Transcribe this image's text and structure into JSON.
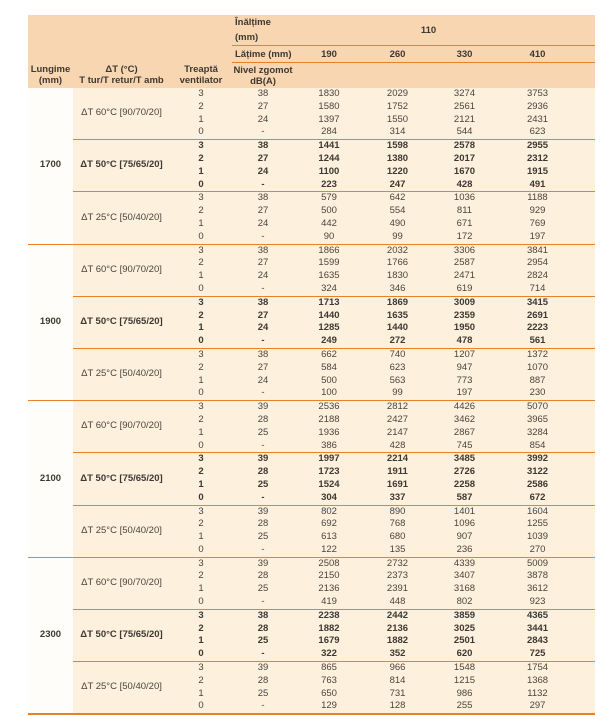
{
  "colors": {
    "header_bg": "#f9d6b2",
    "body_bg": "#fdf0dd",
    "lungime_bg": "#fffdfa",
    "line": "#e5832d",
    "text": "#4b443c"
  },
  "table": {
    "header": {
      "inaltime_label": "Înălțime (mm)",
      "inaltime_value": "110",
      "latime_label": "Lățime (mm)",
      "latime_values": [
        "190",
        "260",
        "330",
        "410"
      ],
      "col_lungime": "Lungime\n(mm)",
      "col_delta_t": "ΔT (°C)\nT tur/T retur/T amb",
      "col_treapta": "Treaptă\nventilator",
      "col_nivel": "Nivel zgomot\ndB(A)"
    },
    "groups": [
      {
        "lungime": "1700",
        "subgroups": [
          {
            "delta_t": "ΔT 60°C [90/70/20]",
            "bold": false,
            "rows": [
              {
                "treapta": "3",
                "db": "38",
                "values": [
                  "1830",
                  "2029",
                  "3274",
                  "3753"
                ]
              },
              {
                "treapta": "2",
                "db": "27",
                "values": [
                  "1580",
                  "1752",
                  "2561",
                  "2936"
                ]
              },
              {
                "treapta": "1",
                "db": "24",
                "values": [
                  "1397",
                  "1550",
                  "2121",
                  "2431"
                ]
              },
              {
                "treapta": "0",
                "db": "-",
                "values": [
                  "284",
                  "314",
                  "544",
                  "623"
                ]
              }
            ]
          },
          {
            "delta_t": "ΔT 50°C [75/65/20]",
            "bold": true,
            "rows": [
              {
                "treapta": "3",
                "db": "38",
                "values": [
                  "1441",
                  "1598",
                  "2578",
                  "2955"
                ]
              },
              {
                "treapta": "2",
                "db": "27",
                "values": [
                  "1244",
                  "1380",
                  "2017",
                  "2312"
                ]
              },
              {
                "treapta": "1",
                "db": "24",
                "values": [
                  "1100",
                  "1220",
                  "1670",
                  "1915"
                ]
              },
              {
                "treapta": "0",
                "db": "-",
                "values": [
                  "223",
                  "247",
                  "428",
                  "491"
                ]
              }
            ]
          },
          {
            "delta_t": "ΔT 25°C [50/40/20]",
            "bold": false,
            "rows": [
              {
                "treapta": "3",
                "db": "38",
                "values": [
                  "579",
                  "642",
                  "1036",
                  "1188"
                ]
              },
              {
                "treapta": "2",
                "db": "27",
                "values": [
                  "500",
                  "554",
                  "811",
                  "929"
                ]
              },
              {
                "treapta": "1",
                "db": "24",
                "values": [
                  "442",
                  "490",
                  "671",
                  "769"
                ]
              },
              {
                "treapta": "0",
                "db": "-",
                "values": [
                  "90",
                  "99",
                  "172",
                  "197"
                ]
              }
            ]
          }
        ]
      },
      {
        "lungime": "1900",
        "subgroups": [
          {
            "delta_t": "ΔT 60°C [90/70/20]",
            "bold": false,
            "rows": [
              {
                "treapta": "3",
                "db": "38",
                "values": [
                  "1866",
                  "2032",
                  "3306",
                  "3841"
                ]
              },
              {
                "treapta": "2",
                "db": "27",
                "values": [
                  "1599",
                  "1766",
                  "2587",
                  "2954"
                ]
              },
              {
                "treapta": "1",
                "db": "24",
                "values": [
                  "1635",
                  "1830",
                  "2471",
                  "2824"
                ]
              },
              {
                "treapta": "0",
                "db": "-",
                "values": [
                  "324",
                  "346",
                  "619",
                  "714"
                ]
              }
            ]
          },
          {
            "delta_t": "ΔT 50°C [75/65/20]",
            "bold": true,
            "rows": [
              {
                "treapta": "3",
                "db": "38",
                "values": [
                  "1713",
                  "1869",
                  "3009",
                  "3415"
                ]
              },
              {
                "treapta": "2",
                "db": "27",
                "values": [
                  "1440",
                  "1635",
                  "2359",
                  "2691"
                ]
              },
              {
                "treapta": "1",
                "db": "24",
                "values": [
                  "1285",
                  "1440",
                  "1950",
                  "2223"
                ]
              },
              {
                "treapta": "0",
                "db": "-",
                "values": [
                  "249",
                  "272",
                  "478",
                  "561"
                ]
              }
            ]
          },
          {
            "delta_t": "ΔT 25°C [50/40/20]",
            "bold": false,
            "rows": [
              {
                "treapta": "3",
                "db": "38",
                "values": [
                  "662",
                  "740",
                  "1207",
                  "1372"
                ]
              },
              {
                "treapta": "2",
                "db": "27",
                "values": [
                  "584",
                  "623",
                  "947",
                  "1070"
                ]
              },
              {
                "treapta": "1",
                "db": "24",
                "values": [
                  "500",
                  "563",
                  "773",
                  "887"
                ]
              },
              {
                "treapta": "0",
                "db": "-",
                "values": [
                  "100",
                  "99",
                  "197",
                  "230"
                ]
              }
            ]
          }
        ]
      },
      {
        "lungime": "2100",
        "subgroups": [
          {
            "delta_t": "ΔT 60°C [90/70/20]",
            "bold": false,
            "rows": [
              {
                "treapta": "3",
                "db": "39",
                "values": [
                  "2536",
                  "2812",
                  "4426",
                  "5070"
                ]
              },
              {
                "treapta": "2",
                "db": "28",
                "values": [
                  "2188",
                  "2427",
                  "3462",
                  "3965"
                ]
              },
              {
                "treapta": "1",
                "db": "25",
                "values": [
                  "1936",
                  "2147",
                  "2867",
                  "3284"
                ]
              },
              {
                "treapta": "0",
                "db": "-",
                "values": [
                  "386",
                  "428",
                  "745",
                  "854"
                ]
              }
            ]
          },
          {
            "delta_t": "ΔT 50°C [75/65/20]",
            "bold": true,
            "rows": [
              {
                "treapta": "3",
                "db": "39",
                "values": [
                  "1997",
                  "2214",
                  "3485",
                  "3992"
                ]
              },
              {
                "treapta": "2",
                "db": "28",
                "values": [
                  "1723",
                  "1911",
                  "2726",
                  "3122"
                ]
              },
              {
                "treapta": "1",
                "db": "25",
                "values": [
                  "1524",
                  "1691",
                  "2258",
                  "2586"
                ]
              },
              {
                "treapta": "0",
                "db": "-",
                "values": [
                  "304",
                  "337",
                  "587",
                  "672"
                ]
              }
            ]
          },
          {
            "delta_t": "ΔT 25°C [50/40/20]",
            "bold": false,
            "rows": [
              {
                "treapta": "3",
                "db": "39",
                "values": [
                  "802",
                  "890",
                  "1401",
                  "1604"
                ]
              },
              {
                "treapta": "2",
                "db": "28",
                "values": [
                  "692",
                  "768",
                  "1096",
                  "1255"
                ]
              },
              {
                "treapta": "1",
                "db": "25",
                "values": [
                  "613",
                  "680",
                  "907",
                  "1039"
                ]
              },
              {
                "treapta": "0",
                "db": "-",
                "values": [
                  "122",
                  "135",
                  "236",
                  "270"
                ]
              }
            ]
          }
        ]
      },
      {
        "lungime": "2300",
        "subgroups": [
          {
            "delta_t": "ΔT 60°C [90/70/20]",
            "bold": false,
            "rows": [
              {
                "treapta": "3",
                "db": "39",
                "values": [
                  "2508",
                  "2732",
                  "4339",
                  "5009"
                ]
              },
              {
                "treapta": "2",
                "db": "28",
                "values": [
                  "2150",
                  "2373",
                  "3407",
                  "3878"
                ]
              },
              {
                "treapta": "1",
                "db": "25",
                "values": [
                  "2136",
                  "2391",
                  "3168",
                  "3612"
                ]
              },
              {
                "treapta": "0",
                "db": "-",
                "values": [
                  "419",
                  "448",
                  "802",
                  "923"
                ]
              }
            ]
          },
          {
            "delta_t": "ΔT 50°C [75/65/20]",
            "bold": true,
            "rows": [
              {
                "treapta": "3",
                "db": "38",
                "values": [
                  "2238",
                  "2442",
                  "3859",
                  "4365"
                ]
              },
              {
                "treapta": "2",
                "db": "28",
                "values": [
                  "1882",
                  "2136",
                  "3025",
                  "3441"
                ]
              },
              {
                "treapta": "1",
                "db": "25",
                "values": [
                  "1679",
                  "1882",
                  "2501",
                  "2843"
                ]
              },
              {
                "treapta": "0",
                "db": "-",
                "values": [
                  "322",
                  "352",
                  "620",
                  "725"
                ]
              }
            ]
          },
          {
            "delta_t": "ΔT 25°C [50/40/20]",
            "bold": false,
            "rows": [
              {
                "treapta": "3",
                "db": "39",
                "values": [
                  "865",
                  "966",
                  "1548",
                  "1754"
                ]
              },
              {
                "treapta": "2",
                "db": "28",
                "values": [
                  "763",
                  "814",
                  "1215",
                  "1368"
                ]
              },
              {
                "treapta": "1",
                "db": "25",
                "values": [
                  "650",
                  "731",
                  "986",
                  "1132"
                ]
              },
              {
                "treapta": "0",
                "db": "-",
                "values": [
                  "129",
                  "128",
                  "255",
                  "297"
                ]
              }
            ]
          }
        ]
      }
    ]
  }
}
